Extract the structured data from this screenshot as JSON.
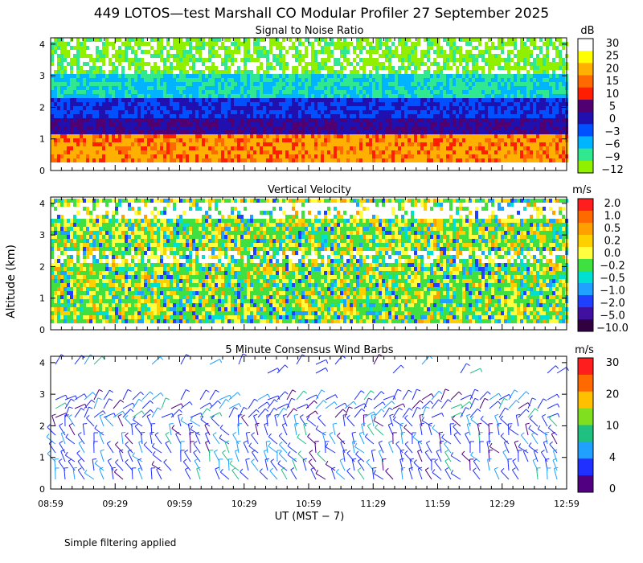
{
  "title": "449 LOTOS—test Marshall CO Modular Profiler 27 September 2025",
  "footer_note": "Simple filtering applied",
  "y_axis_label": "Altitude (km)",
  "chart_data": [
    {
      "type": "heatmap",
      "name": "snr",
      "title": "Signal to Noise Ratio",
      "unit": "dB",
      "ylabel": "Altitude (km)",
      "ylim": [
        0,
        4.2
      ],
      "yticks": [
        "0",
        "1",
        "2",
        "3",
        "4"
      ],
      "colorbar": {
        "labels": [
          "30",
          "25",
          "20",
          "15",
          "10",
          "5",
          "0",
          "−3",
          "−6",
          "−9",
          "−12"
        ],
        "colors": [
          "#ffffff",
          "#ffff00",
          "#ffb000",
          "#ff6a00",
          "#ff1e00",
          "#500070",
          "#2010b0",
          "#0050ff",
          "#00b4ff",
          "#30e890",
          "#90f000"
        ]
      }
    },
    {
      "type": "heatmap",
      "name": "vertical_velocity",
      "title": "Vertical Velocity",
      "unit": "m/s",
      "ylabel": "Altitude (km)",
      "ylim": [
        0,
        4.2
      ],
      "yticks": [
        "0",
        "1",
        "2",
        "3",
        "4"
      ],
      "colorbar": {
        "labels": [
          "2.0",
          "1.0",
          "0.5",
          "0.2",
          "0.0",
          "−0.2",
          "−0.5",
          "−1.0",
          "−2.0",
          "−5.0",
          "−10.0"
        ],
        "colors": [
          "#ff1e1e",
          "#ff6a00",
          "#ffa000",
          "#ffd000",
          "#ffff40",
          "#40e040",
          "#00e0d0",
          "#20a0ff",
          "#2040ff",
          "#4010a0",
          "#300040"
        ]
      }
    },
    {
      "type": "scatter",
      "name": "wind_barbs",
      "title": "5 Minute Consensus Wind Barbs",
      "unit": "m/s",
      "ylabel": "Altitude (km)",
      "ylim": [
        0,
        4.2
      ],
      "yticks": [
        "0",
        "1",
        "2",
        "3",
        "4"
      ],
      "colorbar": {
        "labels": [
          "30",
          "20",
          "10",
          "4",
          "0"
        ],
        "colors": [
          "#ff1e1e",
          "#ff6a00",
          "#ffc000",
          "#80e020",
          "#20c080",
          "#20a0ff",
          "#2030ff",
          "#500080"
        ]
      }
    }
  ],
  "x_axis": {
    "label": "UT  (MST − 7)",
    "ticks": [
      "08:59",
      "09:29",
      "09:59",
      "10:29",
      "10:59",
      "11:29",
      "11:59",
      "12:29",
      "12:59"
    ]
  }
}
